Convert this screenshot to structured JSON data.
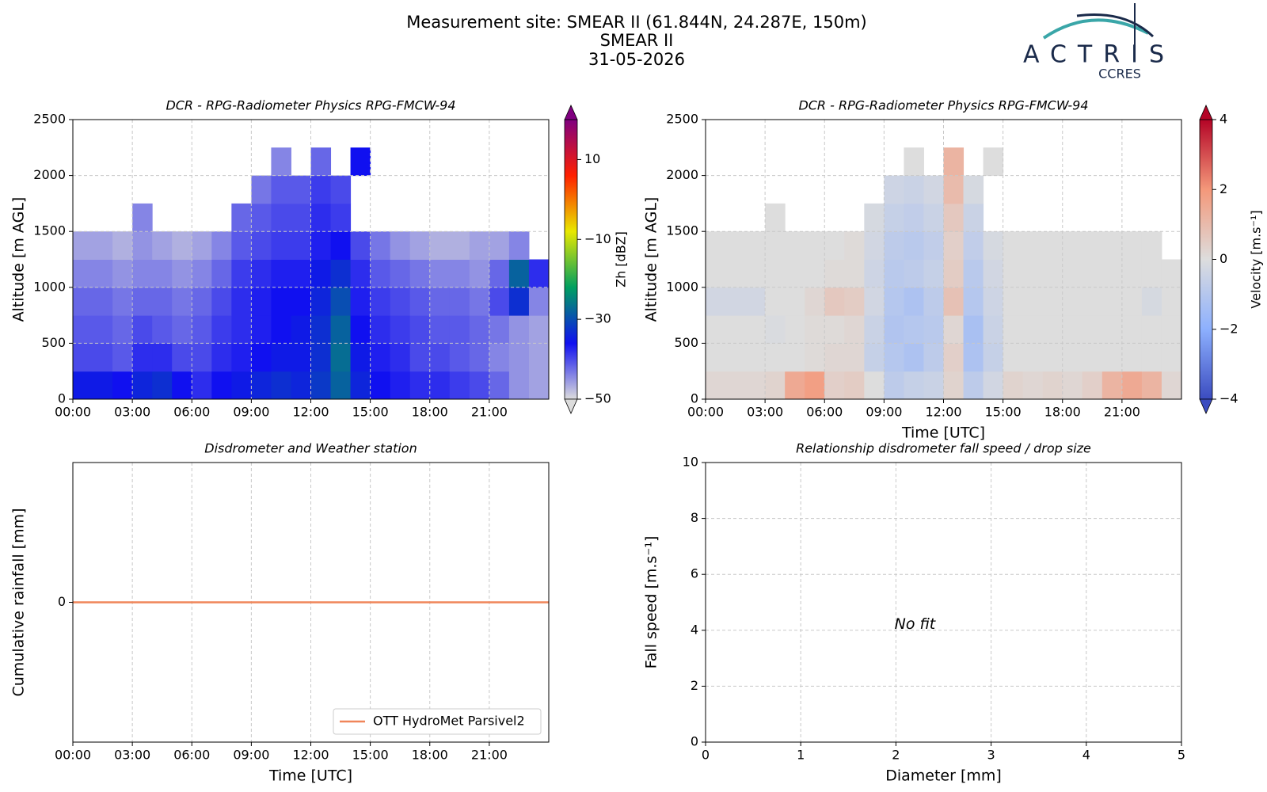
{
  "header": {
    "title": "Measurement site: SMEAR II (61.844N, 24.287E, 150m)",
    "site": "SMEAR II",
    "date": "31-05-2026"
  },
  "logo": {
    "name": "ACTRIS",
    "sub": "CCRES"
  },
  "chart_data": [
    {
      "type": "heatmap",
      "title": "DCR - RPG-Radiometer Physics RPG-FMCW-94",
      "ylabel": "Altitude [m AGL]",
      "xlim": [
        0,
        24
      ],
      "ylim": [
        0,
        2500
      ],
      "xticks": [
        {
          "value": 0,
          "label": "00:00"
        },
        {
          "value": 3,
          "label": "03:00"
        },
        {
          "value": 6,
          "label": "06:00"
        },
        {
          "value": 9,
          "label": "09:00"
        },
        {
          "value": 12,
          "label": "12:00"
        },
        {
          "value": 15,
          "label": "15:00"
        },
        {
          "value": 18,
          "label": "18:00"
        },
        {
          "value": 21,
          "label": "21:00"
        }
      ],
      "yticks": [
        0,
        500,
        1000,
        1500,
        2000,
        2500
      ],
      "grid": true,
      "clabel": "Zh [dBZ]",
      "clim": [
        -50,
        20
      ],
      "cticks": [
        {
          "value": -50,
          "label": "−50"
        },
        {
          "value": -30,
          "label": "−30"
        },
        {
          "value": -10,
          "label": "−10"
        },
        10
      ],
      "colormap": [
        "#dcdcdc",
        "#1010f0",
        "#00a060",
        "#e8e800",
        "#ff2000",
        "#800080"
      ],
      "x": [
        0.5,
        1.5,
        2.5,
        3.5,
        4.5,
        5.5,
        6.5,
        7.5,
        8.5,
        9.5,
        10.5,
        11.5,
        12.5,
        13.5,
        14.5,
        15.5,
        16.5,
        17.5,
        18.5,
        19.5,
        20.5,
        21.5,
        22.5,
        23.5
      ],
      "y": [
        125,
        375,
        625,
        875,
        1125,
        1375,
        1625,
        1875,
        2125,
        2375
      ],
      "z": [
        [
          -35,
          -35,
          -36,
          -34,
          -33,
          -36,
          -38,
          -36,
          -35,
          -34,
          -33,
          -34,
          -32,
          -28,
          -34,
          -36,
          -37,
          -38,
          -38,
          -39,
          -40,
          -42,
          -45,
          -46
        ],
        [
          -40,
          -40,
          -41,
          -38,
          -38,
          -40,
          -40,
          -38,
          -37,
          -36,
          -35,
          -35,
          -33,
          -27,
          -35,
          -37,
          -38,
          -40,
          -40,
          -41,
          -42,
          -44,
          -45,
          -46
        ],
        [
          -41,
          -41,
          -42,
          -40,
          -41,
          -42,
          -41,
          -39,
          -38,
          -37,
          -36,
          -35,
          -33,
          -28,
          -36,
          -38,
          -39,
          -40,
          -41,
          -41,
          -42,
          -43,
          -45,
          -46
        ],
        [
          -42,
          -42,
          -43,
          -42,
          -42,
          -43,
          -42,
          -40,
          -38,
          -37,
          -36,
          -36,
          -34,
          -30,
          -37,
          -39,
          -40,
          -41,
          -42,
          -42,
          -43,
          -40,
          -33,
          -44
        ],
        [
          -44,
          -44,
          -45,
          -44,
          -44,
          -45,
          -44,
          -42,
          -39,
          -38,
          -37,
          -37,
          -35,
          -33,
          -38,
          -41,
          -42,
          -43,
          -44,
          -44,
          -45,
          -42,
          -28,
          -38
        ],
        [
          -46,
          -46,
          -47,
          -45,
          -46,
          -47,
          -46,
          -44,
          -41,
          -40,
          -39,
          -39,
          -37,
          -36,
          -40,
          -43,
          -45,
          -46,
          -47,
          -47,
          -46,
          -46,
          -44,
          null
        ],
        [
          null,
          null,
          null,
          -44,
          null,
          null,
          null,
          null,
          -42,
          -41,
          -40,
          -40,
          -38,
          -39,
          null,
          null,
          null,
          null,
          null,
          null,
          null,
          null,
          null,
          null
        ],
        [
          null,
          null,
          null,
          null,
          null,
          null,
          null,
          null,
          null,
          -43,
          -41,
          -41,
          -39,
          -40,
          null,
          null,
          null,
          null,
          null,
          null,
          null,
          null,
          null,
          null
        ],
        [
          null,
          null,
          null,
          null,
          null,
          null,
          null,
          null,
          null,
          null,
          -44,
          null,
          -42,
          null,
          -36,
          null,
          null,
          null,
          null,
          null,
          null,
          null,
          null,
          null
        ],
        [
          null,
          null,
          null,
          null,
          null,
          null,
          null,
          null,
          null,
          null,
          null,
          null,
          null,
          null,
          null,
          null,
          null,
          null,
          null,
          null,
          null,
          null,
          null,
          null
        ]
      ]
    },
    {
      "type": "heatmap",
      "title": "DCR - RPG-Radiometer Physics RPG-FMCW-94",
      "ylabel": "Altitude [m AGL]",
      "xlabel": "Time [UTC]",
      "xlim": [
        0,
        24
      ],
      "ylim": [
        0,
        2500
      ],
      "xticks": [
        {
          "value": 0,
          "label": "00:00"
        },
        {
          "value": 3,
          "label": "03:00"
        },
        {
          "value": 6,
          "label": "06:00"
        },
        {
          "value": 9,
          "label": "09:00"
        },
        {
          "value": 12,
          "label": "12:00"
        },
        {
          "value": 15,
          "label": "15:00"
        },
        {
          "value": 18,
          "label": "18:00"
        },
        {
          "value": 21,
          "label": "21:00"
        }
      ],
      "yticks": [
        0,
        500,
        1000,
        1500,
        2000,
        2500
      ],
      "grid": true,
      "clabel": "Velocity [m.s⁻¹]",
      "clim": [
        -4,
        4
      ],
      "cticks": [
        {
          "value": -4,
          "label": "−4"
        },
        {
          "value": -2,
          "label": "−2"
        },
        0,
        2,
        4
      ],
      "colormap": [
        "#3b4cc0",
        "#8db0fe",
        "#dddddd",
        "#f4987a",
        "#b40426"
      ],
      "x": [
        0.5,
        1.5,
        2.5,
        3.5,
        4.5,
        5.5,
        6.5,
        7.5,
        8.5,
        9.5,
        10.5,
        11.5,
        12.5,
        13.5,
        14.5,
        15.5,
        16.5,
        17.5,
        18.5,
        19.5,
        20.5,
        21.5,
        22.5,
        23.5
      ],
      "y": [
        125,
        375,
        625,
        875,
        1125,
        1375,
        1625,
        1875,
        2125,
        2375
      ],
      "z": [
        [
          0.2,
          0.2,
          0.2,
          0.3,
          1.5,
          1.8,
          0.4,
          0.5,
          0,
          -0.8,
          -0.6,
          -0.5,
          0.3,
          -0.8,
          -0.3,
          0.3,
          0.2,
          0.3,
          0.2,
          0.4,
          1.2,
          1.5,
          1.2,
          0.2
        ],
        [
          0,
          0,
          0,
          0,
          0,
          0.1,
          0.2,
          0.2,
          -0.6,
          -1,
          -1.2,
          -0.8,
          0.4,
          -1.2,
          -0.6,
          0,
          0,
          0,
          0,
          0,
          0,
          0,
          0,
          0
        ],
        [
          0,
          0,
          0,
          -0.1,
          0,
          0.1,
          0.1,
          0.2,
          -0.5,
          -1.1,
          -1,
          -0.9,
          0.2,
          -1.3,
          -0.5,
          0,
          0,
          0,
          0,
          0,
          0,
          0,
          0,
          0
        ],
        [
          -0.3,
          -0.3,
          -0.3,
          0,
          0,
          0.2,
          0.6,
          0.5,
          -0.3,
          -1,
          -1.2,
          -0.8,
          0.8,
          -1,
          -0.4,
          0,
          0,
          0,
          0,
          0,
          0,
          0,
          -0.2,
          0
        ],
        [
          0,
          0,
          0,
          0,
          0,
          0,
          0.1,
          0.1,
          -0.4,
          -0.9,
          -0.8,
          -0.6,
          0.5,
          -0.9,
          -0.3,
          0,
          0,
          0,
          0,
          0,
          0,
          0,
          0,
          0
        ],
        [
          0,
          0,
          0,
          0,
          0,
          0,
          0,
          0.1,
          -0.3,
          -0.8,
          -0.9,
          -0.7,
          0.4,
          -0.7,
          -0.2,
          0,
          0,
          0,
          0,
          0,
          0,
          0,
          0,
          null
        ],
        [
          null,
          null,
          null,
          0,
          null,
          null,
          null,
          null,
          -0.2,
          -0.6,
          -0.7,
          -0.5,
          0.6,
          -0.5,
          null,
          null,
          null,
          null,
          null,
          null,
          null,
          null,
          null,
          null
        ],
        [
          null,
          null,
          null,
          null,
          null,
          null,
          null,
          null,
          null,
          -0.4,
          -0.5,
          -0.3,
          1,
          -0.2,
          null,
          null,
          null,
          null,
          null,
          null,
          null,
          null,
          null,
          null
        ],
        [
          null,
          null,
          null,
          null,
          null,
          null,
          null,
          null,
          null,
          null,
          0,
          null,
          1.2,
          null,
          0,
          null,
          null,
          null,
          null,
          null,
          null,
          null,
          null,
          null
        ],
        [
          null,
          null,
          null,
          null,
          null,
          null,
          null,
          null,
          null,
          null,
          null,
          null,
          null,
          null,
          null,
          null,
          null,
          null,
          null,
          null,
          null,
          null,
          null,
          null
        ]
      ]
    },
    {
      "type": "line",
      "title": "Disdrometer and Weather station",
      "ylabel": "Cumulative rainfall [mm]",
      "xlabel": "Time [UTC]",
      "xlim": [
        0,
        24
      ],
      "ylim": [
        -1,
        1
      ],
      "xticks": [
        {
          "value": 0,
          "label": "00:00"
        },
        {
          "value": 3,
          "label": "03:00"
        },
        {
          "value": 6,
          "label": "06:00"
        },
        {
          "value": 9,
          "label": "09:00"
        },
        {
          "value": 12,
          "label": "12:00"
        },
        {
          "value": 15,
          "label": "15:00"
        },
        {
          "value": 18,
          "label": "18:00"
        },
        {
          "value": 21,
          "label": "21:00"
        }
      ],
      "yticks": [
        0
      ],
      "grid": true,
      "legend": "lower right",
      "x": [
        0,
        24
      ],
      "series": [
        {
          "name": "OTT HydroMet Parsivel2",
          "color": "#f0865a",
          "values": [
            0,
            0
          ]
        }
      ]
    },
    {
      "type": "scatter",
      "title": "Relationship disdrometer fall speed / drop size",
      "ylabel": "Fall speed [m.s⁻¹]",
      "xlabel": "Diameter [mm]",
      "xlim": [
        0,
        5
      ],
      "ylim": [
        0,
        10
      ],
      "xticks": [
        0,
        1,
        2,
        3,
        4,
        5
      ],
      "yticks": [
        0,
        2,
        4,
        6,
        8,
        10
      ],
      "grid": true,
      "annotations": [
        {
          "text": "No fit",
          "x": 2.2,
          "y": 4.2
        }
      ]
    }
  ]
}
